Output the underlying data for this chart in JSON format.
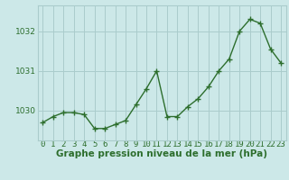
{
  "x": [
    0,
    1,
    2,
    3,
    4,
    5,
    6,
    7,
    8,
    9,
    10,
    11,
    12,
    13,
    14,
    15,
    16,
    17,
    18,
    19,
    20,
    21,
    22,
    23
  ],
  "y": [
    1029.7,
    1029.85,
    1029.95,
    1029.95,
    1029.9,
    1029.55,
    1029.55,
    1029.65,
    1029.75,
    1030.15,
    1030.55,
    1031.0,
    1029.85,
    1029.85,
    1030.1,
    1030.3,
    1030.6,
    1031.0,
    1031.3,
    1032.0,
    1032.3,
    1032.2,
    1031.55,
    1031.2
  ],
  "line_color": "#2d6e2d",
  "marker": "+",
  "bg_color": "#cce8e8",
  "grid_color": "#aacccc",
  "axis_label_color": "#2d6e2d",
  "tick_label_color": "#2d6e2d",
  "xlabel": "Graphe pression niveau de la mer (hPa)",
  "ylabel_ticks": [
    1030,
    1031,
    1032
  ],
  "ylim": [
    1029.25,
    1032.65
  ],
  "xlim": [
    -0.5,
    23.5
  ],
  "xticks": [
    0,
    1,
    2,
    3,
    4,
    5,
    6,
    7,
    8,
    9,
    10,
    11,
    12,
    13,
    14,
    15,
    16,
    17,
    18,
    19,
    20,
    21,
    22,
    23
  ],
  "xlabel_fontsize": 7.5,
  "tick_fontsize": 6.5,
  "linewidth": 1.0,
  "markersize": 4,
  "markeredgewidth": 1.0
}
